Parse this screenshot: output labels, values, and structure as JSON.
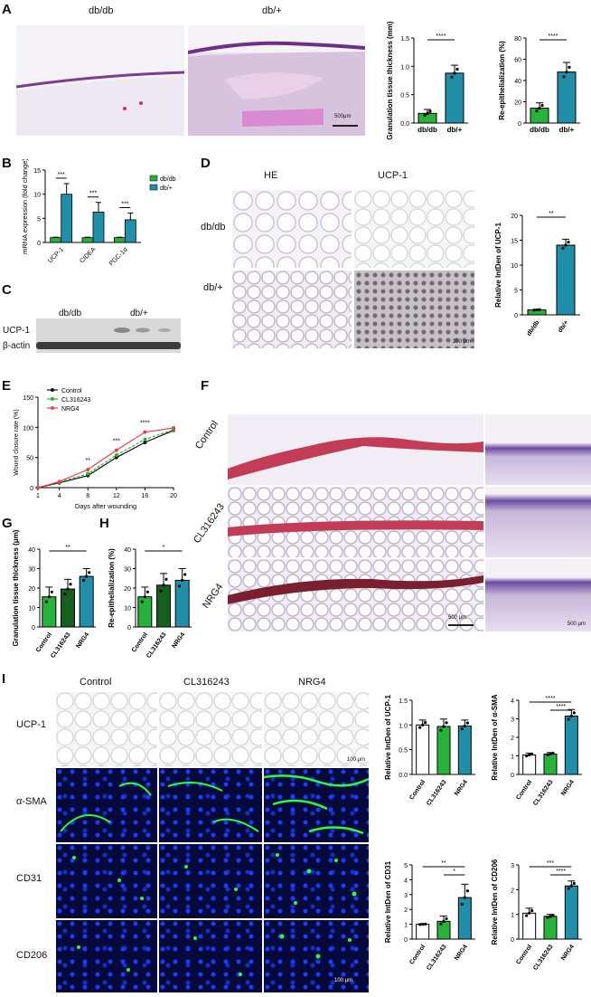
{
  "panels": {
    "A": "A",
    "B": "B",
    "C": "C",
    "D": "D",
    "E": "E",
    "F": "F",
    "G": "G",
    "H": "H",
    "I": "I"
  },
  "panelA": {
    "img_labels": [
      "db/db",
      "db/+"
    ],
    "scale_bar": "500μm"
  },
  "panelC": {
    "groups": [
      "db/db",
      "db/+"
    ],
    "rows": [
      "UCP-1",
      "β-actin"
    ]
  },
  "panelD": {
    "cols": [
      "HE",
      "UCP-1"
    ],
    "rows": [
      "db/db",
      "db/+"
    ],
    "scale_bar": "100 μm"
  },
  "panelF": {
    "rows": [
      "Control",
      "CL316243",
      "NRG4"
    ],
    "scale_left": "500 μm",
    "scale_right": "500 μm"
  },
  "panelI": {
    "cols": [
      "Control",
      "CL316243",
      "NRG4"
    ],
    "rows": [
      "UCP-1",
      "α-SMA",
      "CD31",
      "CD206"
    ],
    "scale_top": "100 μm",
    "scale_bottom": "100 μm"
  },
  "colors": {
    "green": "#27b23a",
    "teal": "#1f8faa",
    "darkgreen": "#155f1f",
    "white": "#ffffff"
  },
  "chart_data": [
    {
      "id": "A1",
      "type": "bar",
      "categories": [
        "db/db",
        "db/+"
      ],
      "values": [
        0.17,
        0.88
      ],
      "errors": [
        0.07,
        0.14
      ],
      "ylabel": "Granulation tissue thickness (mm)",
      "ylim": [
        0,
        1.5
      ],
      "yticks": [
        "0.0",
        "0.5",
        "1.0",
        "1.5"
      ],
      "sig": [
        "****"
      ]
    },
    {
      "id": "A2",
      "type": "bar",
      "categories": [
        "db/db",
        "db/+"
      ],
      "values": [
        14,
        48
      ],
      "errors": [
        5,
        9
      ],
      "ylabel": "Re-epithelialization (%)",
      "ylim": [
        0,
        80
      ],
      "yticks": [
        "0",
        "20",
        "40",
        "60",
        "80"
      ],
      "sig": [
        "****"
      ]
    },
    {
      "id": "B",
      "type": "bar",
      "categories": [
        "UCP-1",
        "CIDEA",
        "PGC-1α"
      ],
      "series": [
        {
          "name": "db/db",
          "values": [
            1,
            1,
            1
          ],
          "errors": [
            0.1,
            0.1,
            0.1
          ]
        },
        {
          "name": "db/+",
          "values": [
            10,
            6.3,
            4.7
          ],
          "errors": [
            2.2,
            2.0,
            1.4
          ]
        }
      ],
      "ylabel": "mRNA expression (fold change)",
      "ylim": [
        0,
        15
      ],
      "yticks": [
        "0",
        "5",
        "10",
        "15"
      ],
      "sig": [
        "***",
        "***",
        "***"
      ]
    },
    {
      "id": "D",
      "type": "bar",
      "categories": [
        "db/db",
        "db/+"
      ],
      "values": [
        1,
        14
      ],
      "errors": [
        0.1,
        1.2
      ],
      "ylabel": "Relative IntDen of UCP-1",
      "ylim": [
        0,
        20
      ],
      "yticks": [
        "0",
        "5",
        "10",
        "15",
        "20"
      ],
      "sig": [
        "**"
      ]
    },
    {
      "id": "E",
      "type": "line",
      "x": [
        1,
        4,
        8,
        12,
        16,
        20
      ],
      "series": [
        {
          "name": "Control",
          "values": [
            0,
            8,
            20,
            50,
            75,
            95
          ]
        },
        {
          "name": "CL316243",
          "values": [
            0,
            9,
            23,
            54,
            80,
            96
          ]
        },
        {
          "name": "NRG4",
          "values": [
            0,
            10,
            30,
            62,
            92,
            99
          ]
        }
      ],
      "xlabel": "Days after wounding",
      "ylabel": "Wound closure rate (%)",
      "ylim": [
        0,
        150
      ],
      "yticks": [
        "0",
        "50",
        "100",
        "150"
      ],
      "sig": [
        "**",
        "***",
        "****"
      ]
    },
    {
      "id": "G",
      "type": "bar",
      "categories": [
        "Control",
        "CL316243",
        "NRG4"
      ],
      "values": [
        15.5,
        19.5,
        26
      ],
      "errors": [
        5,
        5,
        4
      ],
      "ylabel": "Granulation tissue thickness (μm)",
      "ylim": [
        0,
        40
      ],
      "yticks": [
        "0",
        "10",
        "20",
        "30",
        "40"
      ],
      "sig": [
        "**"
      ]
    },
    {
      "id": "H",
      "type": "bar",
      "categories": [
        "Control",
        "CL316243",
        "NRG4"
      ],
      "values": [
        15.5,
        21.5,
        24
      ],
      "errors": [
        5,
        6,
        6
      ],
      "ylabel": "Re-epithelialization (%)",
      "ylim": [
        0,
        40
      ],
      "yticks": [
        "0",
        "10",
        "20",
        "30",
        "40"
      ],
      "sig": [
        "*"
      ]
    },
    {
      "id": "I1",
      "type": "bar",
      "categories": [
        "Control",
        "CL316243",
        "NRG4"
      ],
      "values": [
        1.0,
        0.97,
        0.98
      ],
      "errors": [
        0.1,
        0.15,
        0.12
      ],
      "ylabel": "Relative IntDen of UCP-1",
      "ylim": [
        0,
        1.5
      ],
      "yticks": [
        "0.0",
        "0.5",
        "1.0",
        "1.5"
      ],
      "sig": []
    },
    {
      "id": "I2",
      "type": "bar",
      "categories": [
        "Control",
        "CL316243",
        "NRG4"
      ],
      "values": [
        1.05,
        1.1,
        3.15
      ],
      "errors": [
        0.1,
        0.08,
        0.35
      ],
      "ylabel": "Relative IntDen of α-SMA",
      "ylim": [
        0,
        4
      ],
      "yticks": [
        "0",
        "1",
        "2",
        "3",
        "4"
      ],
      "sig": [
        "****",
        "****"
      ]
    },
    {
      "id": "I3",
      "type": "bar",
      "categories": [
        "Control",
        "CL316243",
        "NRG4"
      ],
      "values": [
        1.0,
        1.2,
        2.8
      ],
      "errors": [
        0.03,
        0.35,
        0.9
      ],
      "ylabel": "Relative IntDen of CD31",
      "ylim": [
        0,
        5
      ],
      "yticks": [
        "0",
        "1",
        "2",
        "3",
        "4",
        "5"
      ],
      "sig": [
        "**",
        "*"
      ]
    },
    {
      "id": "I4",
      "type": "bar",
      "categories": [
        "Control",
        "CL316243",
        "NRG4"
      ],
      "values": [
        1.05,
        0.92,
        2.15
      ],
      "errors": [
        0.2,
        0.08,
        0.2
      ],
      "ylabel": "Relative IntDen of CD206",
      "ylim": [
        0,
        3
      ],
      "yticks": [
        "0",
        "1",
        "2",
        "3"
      ],
      "sig": [
        "***",
        "****"
      ]
    }
  ]
}
